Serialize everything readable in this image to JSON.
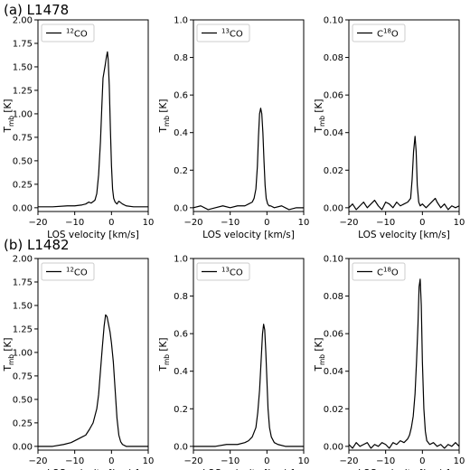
{
  "rows": [
    {
      "label": "(a) L1478"
    },
    {
      "label": "(b) L1482"
    }
  ],
  "chart_data": [
    {
      "type": "line",
      "row": 0,
      "col": 0,
      "legend_parts": [
        "12",
        "CO"
      ],
      "xlabel": "LOS velocity [km/s]",
      "ylabel_parts": [
        "T",
        "mb",
        " [K]"
      ],
      "xlim": [
        -20,
        10
      ],
      "ylim": [
        -0.04,
        2.0
      ],
      "xticks": [
        -20,
        -10,
        0,
        10
      ],
      "xtick_labels": [
        "−20",
        "−10",
        "0",
        "10"
      ],
      "yticks": [
        0,
        0.25,
        0.5,
        0.75,
        1.0,
        1.25,
        1.5,
        1.75,
        2.0
      ],
      "ytick_labels": [
        "0.00",
        "0.25",
        "0.50",
        "0.75",
        "1.00",
        "1.25",
        "1.50",
        "1.75",
        "2.00"
      ],
      "x": [
        -20,
        -16,
        -12,
        -10,
        -8,
        -7,
        -6.2,
        -5.5,
        -4.5,
        -4,
        -3.5,
        -3,
        -2.6,
        -2.3,
        -2.0,
        -1.7,
        -1.4,
        -1.1,
        -0.9,
        -0.6,
        -0.3,
        0,
        0.3,
        0.6,
        1.0,
        1.5,
        2.0,
        3,
        4,
        6,
        8,
        10
      ],
      "y": [
        0.01,
        0.01,
        0.02,
        0.02,
        0.03,
        0.04,
        0.06,
        0.05,
        0.08,
        0.15,
        0.35,
        0.7,
        1.1,
        1.38,
        1.45,
        1.52,
        1.6,
        1.66,
        1.58,
        1.3,
        0.85,
        0.45,
        0.2,
        0.1,
        0.06,
        0.04,
        0.07,
        0.04,
        0.02,
        0.01,
        0.01,
        0.01
      ]
    },
    {
      "type": "line",
      "row": 0,
      "col": 1,
      "legend_parts": [
        "13",
        "CO"
      ],
      "xlabel": "LOS velocity [km/s]",
      "ylabel_parts": [
        "T",
        "mb",
        " [K]"
      ],
      "xlim": [
        -20,
        10
      ],
      "ylim": [
        -0.02,
        1.0
      ],
      "xticks": [
        -20,
        -10,
        0,
        10
      ],
      "xtick_labels": [
        "−20",
        "−10",
        "0",
        "10"
      ],
      "yticks": [
        0,
        0.2,
        0.4,
        0.6,
        0.8,
        1.0
      ],
      "ytick_labels": [
        "0.0",
        "0.2",
        "0.4",
        "0.6",
        "0.8",
        "1.0"
      ],
      "x": [
        -20,
        -18,
        -16,
        -14,
        -12,
        -10,
        -8,
        -6,
        -5,
        -4,
        -3.5,
        -3,
        -2.6,
        -2.3,
        -2.0,
        -1.7,
        -1.4,
        -1.1,
        -0.8,
        -0.5,
        -0.2,
        0.2,
        0.6,
        1,
        2,
        4,
        6,
        8,
        10
      ],
      "y": [
        0.0,
        0.01,
        -0.01,
        0.0,
        0.01,
        0.0,
        0.01,
        0.01,
        0.02,
        0.03,
        0.05,
        0.1,
        0.22,
        0.38,
        0.5,
        0.53,
        0.5,
        0.4,
        0.25,
        0.12,
        0.05,
        0.02,
        0.01,
        0.01,
        0.0,
        0.01,
        -0.01,
        0.0,
        0.0
      ]
    },
    {
      "type": "line",
      "row": 0,
      "col": 2,
      "legend_parts": [
        "C",
        "18",
        "O"
      ],
      "xlabel": "LOS velocity [km/s]",
      "ylabel_parts": [
        "T",
        "mb",
        " [K]"
      ],
      "xlim": [
        -20,
        10
      ],
      "ylim": [
        -0.002,
        0.1
      ],
      "xticks": [
        -20,
        -10,
        0,
        10
      ],
      "xtick_labels": [
        "−20",
        "−10",
        "0",
        "10"
      ],
      "yticks": [
        0,
        0.02,
        0.04,
        0.06,
        0.08,
        0.1
      ],
      "ytick_labels": [
        "0.00",
        "0.02",
        "0.04",
        "0.06",
        "0.08",
        "0.10"
      ],
      "x": [
        -20,
        -19,
        -18,
        -17,
        -16,
        -15,
        -14,
        -13,
        -12,
        -11,
        -10,
        -9,
        -8,
        -7,
        -6,
        -5,
        -4,
        -3.2,
        -2.8,
        -2.4,
        -2.0,
        -1.7,
        -1.4,
        -1.0,
        -0.6,
        0,
        1,
        2,
        3,
        3.5,
        4,
        5,
        6,
        7,
        8,
        9,
        10
      ],
      "y": [
        0.0,
        0.002,
        -0.001,
        0.001,
        0.003,
        0.0,
        0.002,
        0.004,
        0.001,
        -0.001,
        0.003,
        0.002,
        0.0,
        0.003,
        0.001,
        0.002,
        0.003,
        0.005,
        0.015,
        0.03,
        0.038,
        0.03,
        0.012,
        0.003,
        0.001,
        0.002,
        0.0,
        0.002,
        0.004,
        0.005,
        0.003,
        0.0,
        0.002,
        -0.001,
        0.001,
        0.0,
        0.001
      ]
    },
    {
      "type": "line",
      "row": 1,
      "col": 0,
      "legend_parts": [
        "12",
        "CO"
      ],
      "xlabel": "LOS velocity [km/s]",
      "ylabel_parts": [
        "T",
        "mb",
        " [K]"
      ],
      "xlim": [
        -20,
        10
      ],
      "ylim": [
        -0.04,
        2.0
      ],
      "xticks": [
        -20,
        -10,
        0,
        10
      ],
      "xtick_labels": [
        "−20",
        "−10",
        "0",
        "10"
      ],
      "yticks": [
        0,
        0.25,
        0.5,
        0.75,
        1.0,
        1.25,
        1.5,
        1.75,
        2.0
      ],
      "ytick_labels": [
        "0.00",
        "0.25",
        "0.50",
        "0.75",
        "1.00",
        "1.25",
        "1.50",
        "1.75",
        "2.00"
      ],
      "x": [
        -20,
        -16,
        -13,
        -11,
        -9,
        -8,
        -7,
        -6,
        -5,
        -4,
        -3.5,
        -3,
        -2.5,
        -2,
        -1.6,
        -1.2,
        -0.8,
        -0.4,
        0,
        0.5,
        1,
        1.5,
        2,
        2.5,
        3,
        4,
        5,
        7,
        10
      ],
      "y": [
        0.0,
        0.0,
        0.02,
        0.04,
        0.08,
        0.1,
        0.12,
        0.18,
        0.25,
        0.4,
        0.55,
        0.8,
        1.05,
        1.28,
        1.4,
        1.38,
        1.3,
        1.22,
        1.1,
        0.9,
        0.6,
        0.3,
        0.12,
        0.05,
        0.02,
        0.0,
        0.0,
        0.0,
        0.0
      ]
    },
    {
      "type": "line",
      "row": 1,
      "col": 1,
      "legend_parts": [
        "13",
        "CO"
      ],
      "xlabel": "LOS velocity [km/s]",
      "ylabel_parts": [
        "T",
        "mb",
        " [K]"
      ],
      "xlim": [
        -20,
        10
      ],
      "ylim": [
        -0.02,
        1.0
      ],
      "xticks": [
        -20,
        -10,
        0,
        10
      ],
      "xtick_labels": [
        "−20",
        "−10",
        "0",
        "10"
      ],
      "yticks": [
        0,
        0.2,
        0.4,
        0.6,
        0.8,
        1.0
      ],
      "ytick_labels": [
        "0.0",
        "0.2",
        "0.4",
        "0.6",
        "0.8",
        "1.0"
      ],
      "x": [
        -20,
        -17,
        -14,
        -11,
        -8,
        -6,
        -5,
        -4,
        -3,
        -2.5,
        -2,
        -1.6,
        -1.2,
        -0.9,
        -0.6,
        -0.3,
        0,
        0.3,
        0.7,
        1.2,
        2,
        3,
        5,
        7,
        10
      ],
      "y": [
        0.0,
        0.0,
        0.0,
        0.01,
        0.01,
        0.02,
        0.03,
        0.05,
        0.1,
        0.18,
        0.3,
        0.45,
        0.6,
        0.65,
        0.62,
        0.5,
        0.35,
        0.2,
        0.1,
        0.05,
        0.02,
        0.01,
        0.0,
        0.0,
        0.0
      ]
    },
    {
      "type": "line",
      "row": 1,
      "col": 2,
      "legend_parts": [
        "C",
        "18",
        "O"
      ],
      "xlabel": "LOS velocity [km/s]",
      "ylabel_parts": [
        "T",
        "mb",
        " [K]"
      ],
      "xlim": [
        -20,
        10
      ],
      "ylim": [
        -0.002,
        0.1
      ],
      "xticks": [
        -20,
        -10,
        0,
        10
      ],
      "xtick_labels": [
        "−20",
        "−10",
        "0",
        "10"
      ],
      "yticks": [
        0,
        0.02,
        0.04,
        0.06,
        0.08,
        0.1
      ],
      "ytick_labels": [
        "0.00",
        "0.02",
        "0.04",
        "0.06",
        "0.08",
        "0.10"
      ],
      "x": [
        -20,
        -19,
        -18,
        -17,
        -16,
        -15,
        -14,
        -13,
        -12,
        -11,
        -10,
        -9,
        -8,
        -7,
        -6,
        -5,
        -4,
        -3.5,
        -3,
        -2.5,
        -2,
        -1.6,
        -1.2,
        -0.9,
        -0.6,
        -0.3,
        0,
        0.4,
        0.8,
        1.2,
        2,
        3,
        4,
        5,
        6,
        7,
        8,
        9,
        10
      ],
      "y": [
        0.001,
        -0.001,
        0.002,
        0.0,
        0.001,
        0.002,
        -0.001,
        0.001,
        0.0,
        0.002,
        0.001,
        -0.001,
        0.002,
        0.001,
        0.003,
        0.002,
        0.004,
        0.006,
        0.01,
        0.016,
        0.028,
        0.045,
        0.065,
        0.085,
        0.089,
        0.075,
        0.045,
        0.02,
        0.008,
        0.003,
        0.001,
        0.002,
        0.0,
        0.001,
        -0.001,
        0.001,
        0.0,
        0.002,
        0.0
      ]
    }
  ]
}
